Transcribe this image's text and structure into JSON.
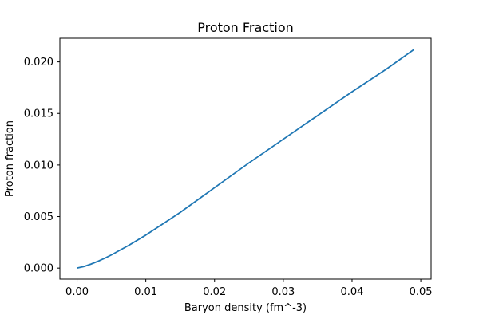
{
  "chart_data": {
    "type": "line",
    "title": "Proton Fraction",
    "xlabel": "Baryon density (fm^-3)",
    "ylabel": "Proton fraction",
    "xlim": [
      -0.0025,
      0.0515
    ],
    "ylim": [
      -0.00107,
      0.02229
    ],
    "xticks": [
      0.0,
      0.01,
      0.02,
      0.03,
      0.04,
      0.05
    ],
    "xtick_labels": [
      "0.00",
      "0.01",
      "0.02",
      "0.03",
      "0.04",
      "0.05"
    ],
    "yticks": [
      0.0,
      0.005,
      0.01,
      0.015,
      0.02
    ],
    "ytick_labels": [
      "0.000",
      "0.005",
      "0.010",
      "0.015",
      "0.020"
    ],
    "grid": false,
    "series": [
      {
        "color": "#1f77b4",
        "x": [
          0.0,
          0.001,
          0.002,
          0.003,
          0.004,
          0.005,
          0.0075,
          0.01,
          0.0125,
          0.015,
          0.0175,
          0.02,
          0.025,
          0.03,
          0.035,
          0.04,
          0.045,
          0.049
        ],
        "y": [
          0.0,
          0.00015,
          0.00038,
          0.00065,
          0.00095,
          0.00128,
          0.0022,
          0.0032,
          0.0043,
          0.0054,
          0.0066,
          0.0078,
          0.0102,
          0.0125,
          0.0148,
          0.0171,
          0.0193,
          0.0212
        ]
      }
    ]
  }
}
